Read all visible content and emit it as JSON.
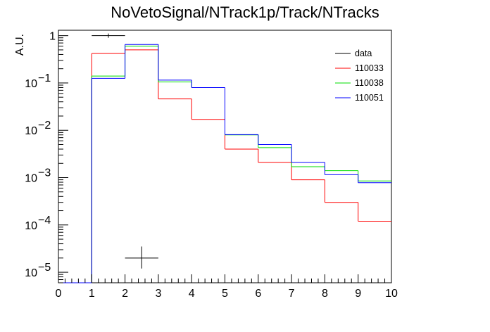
{
  "chart_data": {
    "type": "line",
    "title": "NoVetoSignal/NTrack1p/Track/NTracks",
    "xlabel": "",
    "ylabel": "A.U.",
    "xlim": [
      0,
      10
    ],
    "ylim": [
      6e-06,
      1.3
    ],
    "log_y": true,
    "grid": false,
    "legend_position": "top-right",
    "x_ticks": [
      "0",
      "1",
      "2",
      "3",
      "4",
      "5",
      "6",
      "7",
      "8",
      "9",
      "10"
    ],
    "y_ticks": [
      {
        "value": 1,
        "label": "1",
        "exp": ""
      },
      {
        "value": 0.1,
        "label": "10",
        "exp": "−1"
      },
      {
        "value": 0.01,
        "label": "10",
        "exp": "−2"
      },
      {
        "value": 0.001,
        "label": "10",
        "exp": "−3"
      },
      {
        "value": 0.0001,
        "label": "10",
        "exp": "−4"
      },
      {
        "value": 1e-05,
        "label": "10",
        "exp": "−5"
      }
    ],
    "bin_edges": [
      0,
      1,
      2,
      3,
      4,
      5,
      6,
      7,
      8,
      9,
      10
    ],
    "data_points": [
      {
        "x": 1.5,
        "y": 1.0,
        "xerr": 0.5
      },
      {
        "x": 2.5,
        "y": 2e-05,
        "xerr": 0.5,
        "ylow": 1.2e-05,
        "yhigh": 3.5e-05
      }
    ],
    "series": [
      {
        "name": "data",
        "color": "#000000",
        "style": "marker"
      },
      {
        "name": "110033",
        "color": "#ff0000",
        "style": "step",
        "values": [
          0,
          0.42,
          0.5,
          0.046,
          0.017,
          0.004,
          0.0021,
          0.0009,
          0.0003,
          0.00012
        ]
      },
      {
        "name": "110038",
        "color": "#00dd00",
        "style": "step",
        "values": [
          0,
          0.14,
          0.6,
          0.105,
          0.08,
          0.008,
          0.0043,
          0.0017,
          0.0014,
          0.00085
        ]
      },
      {
        "name": "110051",
        "color": "#0000ff",
        "style": "step",
        "values": [
          0,
          0.125,
          0.65,
          0.115,
          0.08,
          0.0081,
          0.005,
          0.0021,
          0.00115,
          0.00078
        ]
      }
    ]
  }
}
